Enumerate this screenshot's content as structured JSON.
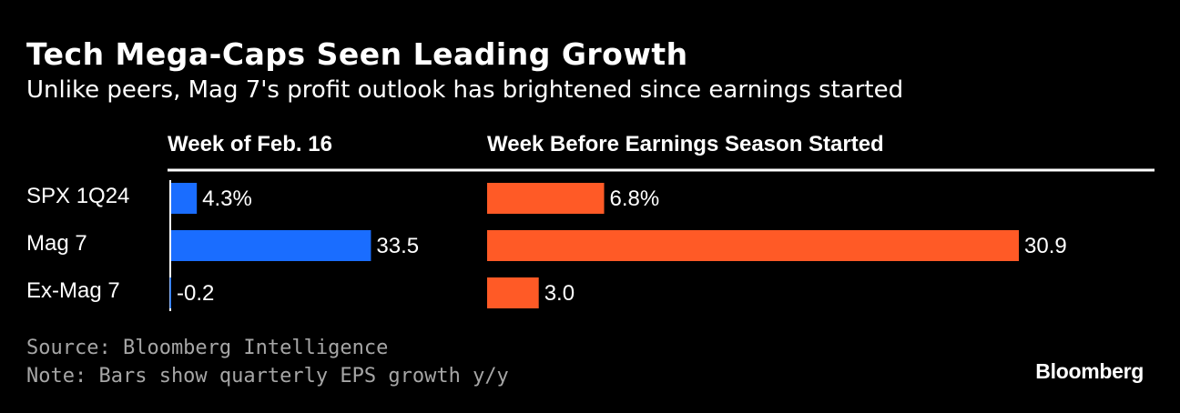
{
  "title": "Tech Mega-Caps Seen Leading Growth",
  "subtitle": "Unlike peers, Mag 7's profit outlook has brightened since earnings started",
  "footer": {
    "source": "Source: Bloomberg Intelligence",
    "note": "Note: Bars show quarterly EPS growth y/y",
    "brand": "Bloomberg"
  },
  "colors": {
    "background": "#000000",
    "series_1": "#1a6dff",
    "series_2": "#ff5a26",
    "text": "#ffffff",
    "muted": "#a6a6a6"
  },
  "chart_data": {
    "type": "bar",
    "orientation": "horizontal",
    "unit": "%",
    "categories": [
      "SPX 1Q24",
      "Mag 7",
      "Ex-Mag 7"
    ],
    "series": [
      {
        "name": "Week of Feb. 16",
        "values": [
          4.3,
          33.5,
          -0.2
        ],
        "labels": [
          "4.3%",
          "33.5",
          "-0.2"
        ]
      },
      {
        "name": "Week Before Earnings Season Started",
        "values": [
          6.8,
          30.9,
          3.0
        ],
        "labels": [
          "6.8%",
          "30.9",
          "3.0"
        ]
      }
    ]
  }
}
